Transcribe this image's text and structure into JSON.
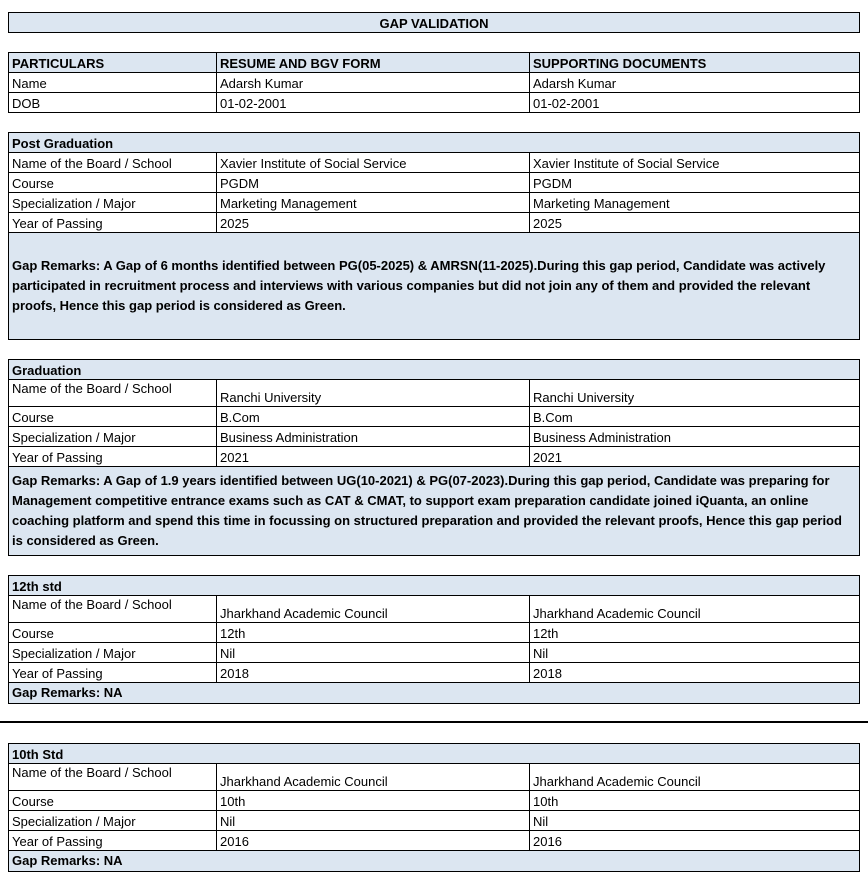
{
  "title": "GAP VALIDATION",
  "header": {
    "col1": "PARTICULARS",
    "col2": "RESUME AND BGV FORM",
    "col3": "SUPPORTING DOCUMENTS"
  },
  "personal": [
    {
      "label": "Name",
      "resume": "Adarsh Kumar",
      "docs": "Adarsh Kumar"
    },
    {
      "label": "DOB",
      "resume": "01-02-2001",
      "docs": "01-02-2001"
    }
  ],
  "sections": [
    {
      "title": "Post Graduation",
      "rows": [
        {
          "label": "Name of the Board / School",
          "resume": "Xavier Institute of Social Service",
          "docs": "Xavier Institute of Social Service"
        },
        {
          "label": "Course",
          "resume": "PGDM",
          "docs": "PGDM"
        },
        {
          "label": "Specialization / Major",
          "resume": "Marketing Management",
          "docs": "Marketing Management"
        },
        {
          "label": "Year of Passing",
          "resume": "2025",
          "docs": "2025"
        }
      ],
      "remarks": "Gap Remarks: A Gap of 6 months identified between PG(05-2025) & AMRSN(11-2025).During this gap period, Candidate was actively participated in recruitment process and interviews with various companies but did not join any of them and provided the relevant proofs, Hence this gap period is considered as Green."
    },
    {
      "title": "Graduation",
      "rows": [
        {
          "label": "Name of the Board / School",
          "resume": "Ranchi University",
          "docs": "Ranchi University"
        },
        {
          "label": "Course",
          "resume": "B.Com",
          "docs": "B.Com"
        },
        {
          "label": "Specialization / Major",
          "resume": "Business Administration",
          "docs": "Business Administration"
        },
        {
          "label": "Year of Passing",
          "resume": "2021",
          "docs": "2021"
        }
      ],
      "remarks": "Gap Remarks: A Gap of 1.9 years identified between UG(10-2021) & PG(07-2023).During this gap period, Candidate was preparing for Management competitive entrance exams such as CAT & CMAT, to support exam preparation candidate joined iQuanta, an online coaching platform and spend this time in focussing on structured preparation and provided the relevant proofs, Hence this gap period is considered as Green."
    },
    {
      "title": "12th std",
      "rows": [
        {
          "label": "Name of the Board / School",
          "resume": "Jharkhand Academic Council",
          "docs": "Jharkhand Academic Council"
        },
        {
          "label": "Course",
          "resume": "12th",
          "docs": "12th"
        },
        {
          "label": "Specialization / Major",
          "resume": "Nil",
          "docs": "Nil"
        },
        {
          "label": "Year of Passing",
          "resume": "2018",
          "docs": "2018"
        }
      ],
      "remarks": "Gap Remarks: NA"
    },
    {
      "title": "10th Std",
      "rows": [
        {
          "label": "Name of the Board / School",
          "resume": "Jharkhand Academic Council",
          "docs": "Jharkhand Academic Council"
        },
        {
          "label": "Course",
          "resume": "10th",
          "docs": "10th"
        },
        {
          "label": "Specialization / Major",
          "resume": "Nil",
          "docs": "Nil"
        },
        {
          "label": "Year of Passing",
          "resume": "2016",
          "docs": "2016"
        }
      ],
      "remarks": "Gap Remarks: NA"
    }
  ],
  "colors": {
    "header_fill": "#dce6f1",
    "border": "#000000"
  }
}
